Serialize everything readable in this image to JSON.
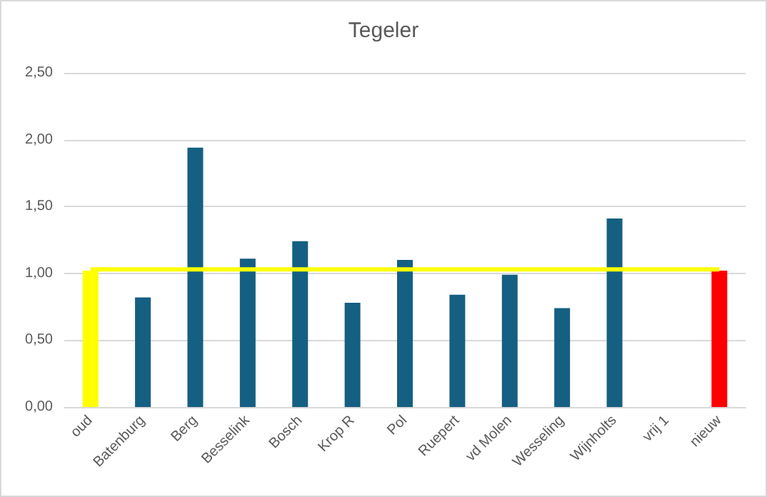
{
  "chart_data": {
    "type": "bar",
    "title": "Tegeler",
    "categories": [
      "oud",
      "Batenburg",
      "Berg",
      "Besselink",
      "Bosch",
      "Krop R",
      "Pol",
      "Ruepert",
      "vd Molen",
      "Wesseling",
      "Wijnholts",
      "vrij 1",
      "nieuw"
    ],
    "series": [
      {
        "values": [
          1.02,
          0.82,
          1.94,
          1.11,
          1.24,
          0.78,
          1.1,
          0.84,
          0.99,
          0.74,
          1.41,
          null,
          1.02
        ],
        "colors": [
          "#ffff00",
          "#155f82",
          "#155f82",
          "#155f82",
          "#155f82",
          "#155f82",
          "#155f82",
          "#155f82",
          "#155f82",
          "#155f82",
          "#155f82",
          "#155f82",
          "#ff0000"
        ]
      },
      {
        "type": "line",
        "color": "#ffff00",
        "values": [
          1.03,
          1.03,
          1.03,
          1.03,
          1.03,
          1.03,
          1.03,
          1.03,
          1.03,
          1.03,
          1.03,
          1.03,
          1.03
        ]
      }
    ],
    "ylim": [
      0,
      2.5
    ],
    "yticks": [
      {
        "value": 0,
        "label": "0,00"
      },
      {
        "value": 0.5,
        "label": "0,50"
      },
      {
        "value": 1,
        "label": "1,00"
      },
      {
        "value": 1.5,
        "label": "1,50"
      },
      {
        "value": 2,
        "label": "2,00"
      },
      {
        "value": 2.5,
        "label": "2,50"
      }
    ],
    "grid": "y",
    "marker": "none"
  }
}
